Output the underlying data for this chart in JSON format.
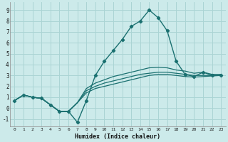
{
  "xlabel": "Humidex (Indice chaleur)",
  "bg_color": "#cceaea",
  "grid_color": "#aad4d4",
  "line_color": "#1a7070",
  "xlim": [
    -0.5,
    23.5
  ],
  "ylim": [
    -1.7,
    9.7
  ],
  "xtick_labels": [
    "0",
    "1",
    "2",
    "3",
    "4",
    "5",
    "6",
    "7",
    "8",
    "9",
    "10",
    "11",
    "12",
    "13",
    "14",
    "15",
    "16",
    "17",
    "18",
    "19",
    "20",
    "21",
    "22",
    "23"
  ],
  "ytick_labels": [
    "-1",
    "0",
    "1",
    "2",
    "3",
    "4",
    "5",
    "6",
    "7",
    "8",
    "9"
  ],
  "ytick_vals": [
    -1,
    0,
    1,
    2,
    3,
    4,
    5,
    6,
    7,
    8,
    9
  ],
  "lines": [
    [
      0.7,
      1.2,
      1.0,
      0.9,
      0.3,
      -0.3,
      -0.3,
      -1.3,
      0.7,
      3.0,
      4.3,
      5.3,
      6.3,
      7.5,
      8.0,
      9.0,
      8.3,
      7.1,
      4.3,
      3.1,
      2.9,
      3.3,
      3.0,
      3.0
    ],
    [
      0.7,
      1.2,
      1.0,
      0.9,
      0.3,
      -0.3,
      -0.3,
      0.5,
      1.8,
      2.3,
      2.6,
      2.9,
      3.1,
      3.3,
      3.5,
      3.7,
      3.75,
      3.7,
      3.5,
      3.4,
      3.2,
      3.3,
      3.1,
      3.1
    ],
    [
      0.7,
      1.2,
      1.0,
      0.9,
      0.3,
      -0.3,
      -0.3,
      0.5,
      1.6,
      2.0,
      2.3,
      2.5,
      2.7,
      2.9,
      3.1,
      3.2,
      3.3,
      3.3,
      3.2,
      3.1,
      3.0,
      3.0,
      3.0,
      3.0
    ],
    [
      0.7,
      1.2,
      1.0,
      0.9,
      0.3,
      -0.3,
      -0.3,
      0.5,
      1.4,
      1.8,
      2.0,
      2.2,
      2.4,
      2.6,
      2.8,
      3.0,
      3.1,
      3.1,
      3.0,
      2.9,
      2.85,
      2.9,
      2.95,
      3.0
    ]
  ]
}
